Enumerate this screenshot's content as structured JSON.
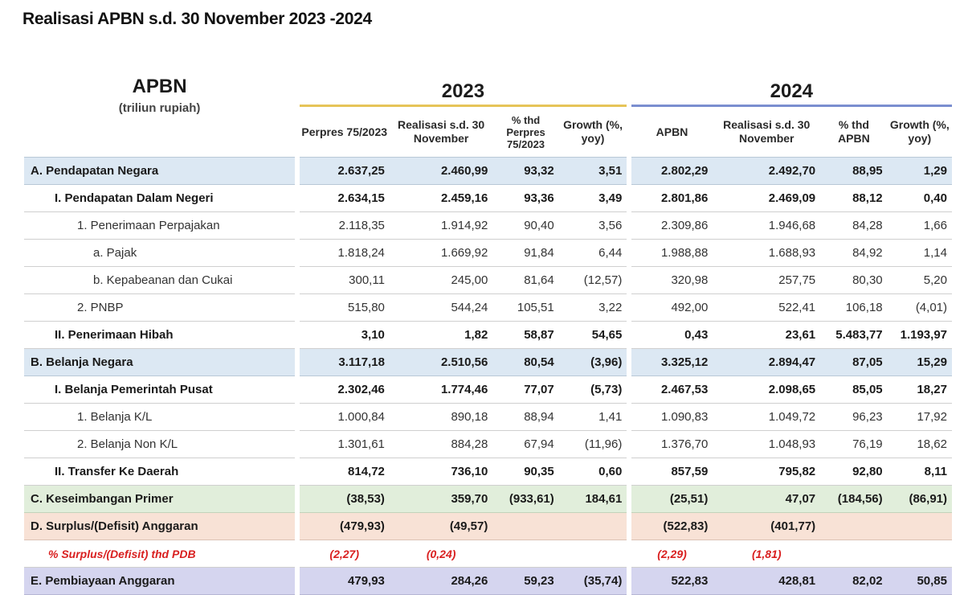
{
  "title": "Realisasi APBN  s.d. 30 November 2023 -2024",
  "header": {
    "apbn": "APBN",
    "unit": "(triliun rupiah)",
    "year_2023": "2023",
    "year_2024": "2024",
    "columns": [
      "Perpres 75/2023",
      "Realisasi s.d. 30 November",
      "% thd Perpres 75/2023",
      "Growth (%, yoy)",
      "APBN",
      "Realisasi s.d. 30 November",
      "% thd APBN",
      "Growth (%, yoy)"
    ]
  },
  "rows": [
    {
      "label": "A. Pendapatan Negara",
      "v": [
        "2.637,25",
        "2.460,99",
        "93,32",
        "3,51",
        "2.802,29",
        "2.492,70",
        "88,95",
        "1,29"
      ]
    },
    {
      "label": "I.  Pendapatan Dalam Negeri",
      "v": [
        "2.634,15",
        "2.459,16",
        "93,36",
        "3,49",
        "2.801,86",
        "2.469,09",
        "88,12",
        "0,40"
      ]
    },
    {
      "label": "1. Penerimaan Perpajakan",
      "v": [
        "2.118,35",
        "1.914,92",
        "90,40",
        "3,56",
        "2.309,86",
        "1.946,68",
        "84,28",
        "1,66"
      ]
    },
    {
      "label": "a.  Pajak",
      "v": [
        "1.818,24",
        "1.669,92",
        "91,84",
        "6,44",
        "1.988,88",
        "1.688,93",
        "84,92",
        "1,14"
      ]
    },
    {
      "label": "b.  Kepabeanan dan Cukai",
      "v": [
        "300,11",
        "245,00",
        "81,64",
        "(12,57)",
        "320,98",
        "257,75",
        "80,30",
        "5,20"
      ]
    },
    {
      "label": "2. PNBP",
      "v": [
        "515,80",
        "544,24",
        "105,51",
        "3,22",
        "492,00",
        "522,41",
        "106,18",
        "(4,01)"
      ]
    },
    {
      "label": "II. Penerimaan Hibah",
      "v": [
        "3,10",
        "1,82",
        "58,87",
        "54,65",
        "0,43",
        "23,61",
        "5.483,77",
        "1.193,97"
      ]
    },
    {
      "label": "B. Belanja Negara",
      "v": [
        "3.117,18",
        "2.510,56",
        "80,54",
        "(3,96)",
        "3.325,12",
        "2.894,47",
        "87,05",
        "15,29"
      ]
    },
    {
      "label": "I. Belanja Pemerintah Pusat",
      "v": [
        "2.302,46",
        "1.774,46",
        "77,07",
        "(5,73)",
        "2.467,53",
        "2.098,65",
        "85,05",
        "18,27"
      ]
    },
    {
      "label": "1. Belanja K/L",
      "v": [
        "1.000,84",
        "890,18",
        "88,94",
        "1,41",
        "1.090,83",
        "1.049,72",
        "96,23",
        "17,92"
      ]
    },
    {
      "label": "2. Belanja Non K/L",
      "v": [
        "1.301,61",
        "884,28",
        "67,94",
        "(11,96)",
        "1.376,70",
        "1.048,93",
        "76,19",
        "18,62"
      ]
    },
    {
      "label": "II. Transfer Ke Daerah",
      "v": [
        "814,72",
        "736,10",
        "90,35",
        "0,60",
        "857,59",
        "795,82",
        "92,80",
        "8,11"
      ]
    },
    {
      "label": "C. Keseimbangan Primer",
      "v": [
        "(38,53)",
        "359,70",
        "(933,61)",
        "184,61",
        "(25,51)",
        "47,07",
        "(184,56)",
        "(86,91)"
      ]
    },
    {
      "label": "D. Surplus/(Defisit) Anggaran",
      "v": [
        "(479,93)",
        "(49,57)",
        "",
        "",
        "(522,83)",
        "(401,77)",
        "",
        ""
      ]
    },
    {
      "label": "% Surplus/(Defisit) thd PDB",
      "v": [
        "(2,27)",
        "(0,24)",
        "",
        "",
        "(2,29)",
        "(1,81)",
        "",
        ""
      ]
    },
    {
      "label": "E. Pembiayaan Anggaran",
      "v": [
        "479,93",
        "284,26",
        "59,23",
        "(35,74)",
        "522,83",
        "428,81",
        "82,02",
        "50,85"
      ]
    }
  ],
  "colors": {
    "section_blue": "#dce8f3",
    "section_green": "#e1eedb",
    "section_peach": "#f8e2d6",
    "section_purple": "#d5d5ef",
    "accent_2023": "#e6c458",
    "accent_2024": "#7b8ed0",
    "pct_red": "#d92020"
  }
}
